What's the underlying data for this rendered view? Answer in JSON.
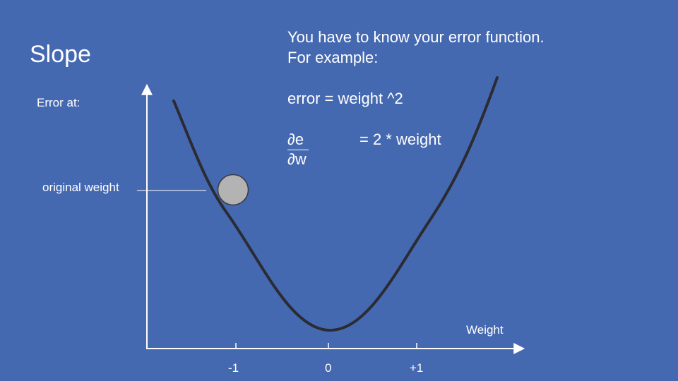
{
  "title": "Slope",
  "axis": {
    "y_label": "Error at:",
    "x_label": "Weight",
    "ticks": [
      "-1",
      "0",
      "+1"
    ]
  },
  "annotation": {
    "original_weight": "original weight"
  },
  "notes": {
    "line1": "You have to know your error function.",
    "line2": "For example:",
    "error_eq": "error = weight ^2",
    "deriv_numerator": "∂e",
    "deriv_denominator": "∂w",
    "deriv_rhs": "= 2 * weight"
  },
  "colors": {
    "background": "#4569B1",
    "curve": "#2B2B33",
    "ball": "#B3B3B3",
    "axis": "#FFFFFF"
  },
  "chart_data": {
    "type": "line",
    "title": "Slope",
    "xlabel": "Weight",
    "ylabel": "Error at:",
    "x_ticks": [
      "-1",
      "0",
      "+1"
    ],
    "series": [
      {
        "name": "error = weight ^2",
        "function": "weight^2"
      }
    ],
    "marker": {
      "label": "original weight",
      "x": -1.05
    }
  }
}
